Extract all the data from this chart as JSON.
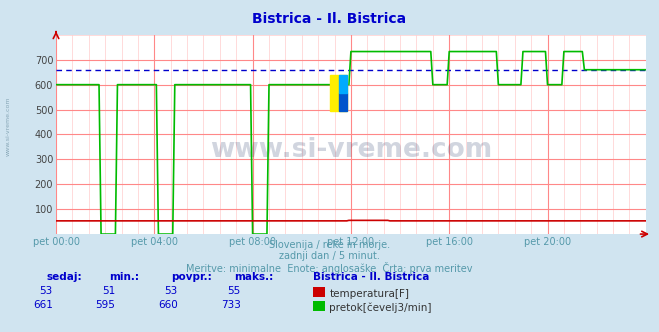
{
  "title": "Bistrica - Il. Bistrica",
  "title_color": "#0000cc",
  "bg_color": "#d0e4f0",
  "plot_bg_color": "#ffffff",
  "grid_color_major": "#ff8888",
  "grid_color_minor": "#ffcccc",
  "ylabel_ticks": [
    100,
    200,
    300,
    400,
    500,
    600,
    700
  ],
  "ylim": [
    0,
    800
  ],
  "xlim": [
    0,
    288
  ],
  "xtick_labels": [
    "pet 00:00",
    "pet 04:00",
    "pet 08:00",
    "pet 12:00",
    "pet 16:00",
    "pet 20:00"
  ],
  "xtick_positions": [
    0,
    48,
    96,
    144,
    192,
    240
  ],
  "subtitle1": "Slovenija / reke in morje.",
  "subtitle2": "zadnji dan / 5 minut.",
  "subtitle3": "Meritve: minimalne  Enote: anglosaške  Črta: prva meritev",
  "subtitle_color": "#5599aa",
  "watermark": "www.si-vreme.com",
  "legend_title": "Bistrica - Il. Bistrica",
  "legend_items": [
    {
      "label": "temperatura[F]",
      "color": "#cc0000"
    },
    {
      "label": "pretok[čevelj3/min]",
      "color": "#00bb00"
    }
  ],
  "table_headers": [
    "sedaj:",
    "min.:",
    "povpr.:",
    "maks.:"
  ],
  "table_row1": [
    53,
    51,
    53,
    55
  ],
  "table_row2": [
    661,
    595,
    660,
    733
  ],
  "flow_avg": 660,
  "temp_color": "#cc0000",
  "flow_color": "#00bb00",
  "avg_line_color": "#0000cc",
  "flow_segments": [
    {
      "start": 0,
      "end": 22,
      "value": 600
    },
    {
      "start": 22,
      "end": 30,
      "value": 0
    },
    {
      "start": 30,
      "end": 50,
      "value": 600
    },
    {
      "start": 50,
      "end": 58,
      "value": 0
    },
    {
      "start": 58,
      "end": 96,
      "value": 600
    },
    {
      "start": 96,
      "end": 104,
      "value": 0
    },
    {
      "start": 104,
      "end": 144,
      "value": 600
    },
    {
      "start": 144,
      "end": 184,
      "value": 733
    },
    {
      "start": 184,
      "end": 192,
      "value": 600
    },
    {
      "start": 192,
      "end": 216,
      "value": 733
    },
    {
      "start": 216,
      "end": 228,
      "value": 600
    },
    {
      "start": 228,
      "end": 240,
      "value": 733
    },
    {
      "start": 240,
      "end": 248,
      "value": 600
    },
    {
      "start": 248,
      "end": 258,
      "value": 733
    },
    {
      "start": 258,
      "end": 288,
      "value": 660
    }
  ],
  "temp_segments": [
    {
      "start": 0,
      "end": 143,
      "value": 53
    },
    {
      "start": 143,
      "end": 163,
      "value": 55
    },
    {
      "start": 163,
      "end": 288,
      "value": 53
    }
  ]
}
